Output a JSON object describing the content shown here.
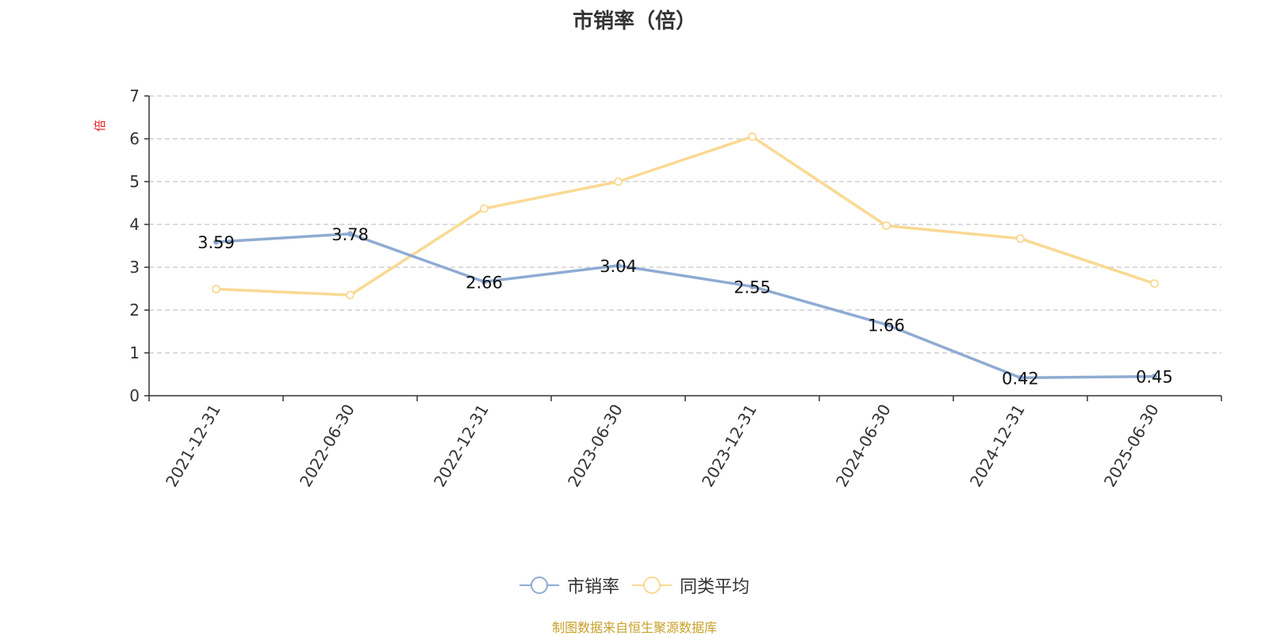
{
  "chart_data": {
    "type": "line",
    "title": "市销率（倍）",
    "ylabel": "倍",
    "categories": [
      "2021-12-31",
      "2022-06-30",
      "2022-12-31",
      "2023-06-30",
      "2023-12-31",
      "2024-06-30",
      "2024-12-31",
      "2025-06-30"
    ],
    "y_ticks": [
      "0",
      "1",
      "2",
      "3",
      "4",
      "5",
      "6",
      "7"
    ],
    "ylim": [
      0,
      7
    ],
    "grid": true,
    "legend_position": "bottom",
    "series": [
      {
        "name": "市销率",
        "color": "#8eabd3",
        "values": [
          3.59,
          3.78,
          2.66,
          3.04,
          2.55,
          1.66,
          0.42,
          0.45
        ],
        "labels": [
          "3.59",
          "3.78",
          "2.66",
          "3.04",
          "2.55",
          "1.66",
          "0.42",
          "0.45"
        ]
      },
      {
        "name": "同类平均",
        "color": "#f9d993",
        "values": [
          2.49,
          2.35,
          4.37,
          5.0,
          6.05,
          3.97,
          3.67,
          2.62
        ]
      }
    ]
  },
  "source": "制图数据来自恒生聚源数据库"
}
